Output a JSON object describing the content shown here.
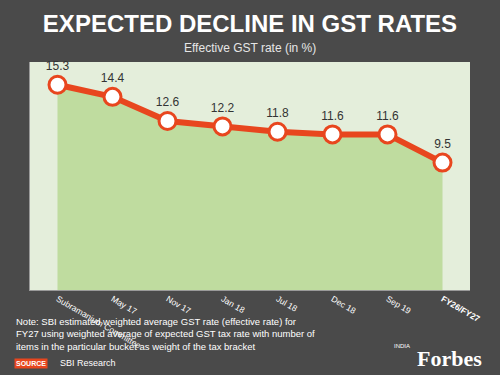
{
  "chart_data": {
    "type": "line",
    "title": "EXPECTED DECLINE IN GST RATES",
    "subtitle": "Effective GST rate (in %)",
    "categories": [
      "Subramanium Committee",
      "May 17",
      "Nov 17",
      "Jan 18",
      "Jul 18",
      "Dec 18",
      "Sep 19",
      "FY26/FY27"
    ],
    "values": [
      15.3,
      14.4,
      12.6,
      12.2,
      11.8,
      11.6,
      11.6,
      9.5
    ],
    "color": "#e8461e",
    "marker": "circle",
    "ylim": [
      0,
      17
    ],
    "tick_labels": "x",
    "data_labels": true,
    "grid": false,
    "note": [
      "Note: SBI estimated weighted average GST rate (effective rate) for",
      "FY27 using weighted average of expected GST tax rate with number of",
      "items in the particular bucket as weight of the tax bracket"
    ],
    "source": {
      "label": "SOURCE",
      "text": "SBI Research"
    },
    "logo": {
      "text": "Forbes",
      "sub": "INDIA"
    }
  }
}
